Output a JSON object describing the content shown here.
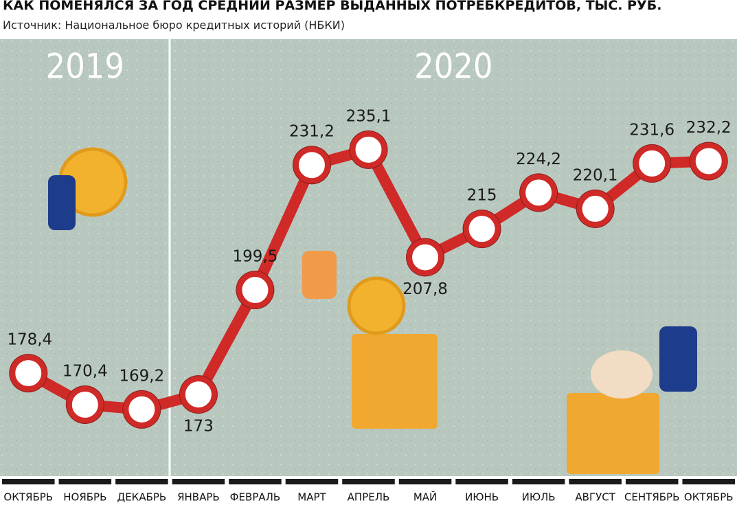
{
  "chart_data": {
    "type": "line",
    "title": "КАК ПОМЕНЯЛСЯ ЗА ГОД СРЕДНИЙ РАЗМЕР ВЫДАННЫХ ПОТРЕБКРЕДИТОВ, ТЫС. РУБ.",
    "subtitle": "Источник: Национальное бюро кредитных историй (НБКИ)",
    "annotations": [
      "2019",
      "2020"
    ],
    "categories": [
      "ОКТЯБРЬ",
      "НОЯБРЬ",
      "ДЕКАБРЬ",
      "ЯНВАРЬ",
      "ФЕВРАЛЬ",
      "МАРТ",
      "АПРЕЛЬ",
      "МАЙ",
      "ИЮНЬ",
      "ИЮЛЬ",
      "АВГУСТ",
      "СЕНТЯБРЬ",
      "ОКТЯБРЬ"
    ],
    "values": [
      178.4,
      170.4,
      169.2,
      173,
      199.5,
      231.2,
      235.1,
      207.8,
      215,
      224.2,
      220.1,
      231.6,
      232.2
    ],
    "value_labels": [
      "178,4",
      "170,4",
      "169,2",
      "173",
      "199,5",
      "231,2",
      "235,1",
      "207,8",
      "215",
      "224,2",
      "220,1",
      "231,6",
      "232,2"
    ],
    "color": "#cf2a27",
    "ylim": [
      150,
      260
    ]
  }
}
